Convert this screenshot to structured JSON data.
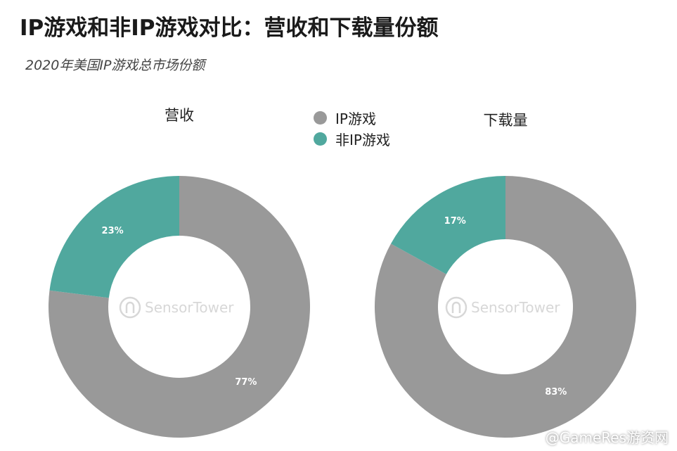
{
  "title": "IP游戏和非IP游戏对比：营收和下载量份额",
  "subtitle": "2020年美国IP游戏总市场份额",
  "legend": [
    {
      "label": "IP游戏",
      "color": "#999999"
    },
    {
      "label": "非IP游戏",
      "color": "#50a89e"
    }
  ],
  "watermark": {
    "text": "SensorTower"
  },
  "footer_watermark": "@GameRes游资网",
  "chart_data": [
    {
      "type": "pie",
      "donut": true,
      "title": "营收",
      "series": [
        {
          "name": "IP游戏",
          "value": 77,
          "label": "77%",
          "color": "#999999"
        },
        {
          "name": "非IP游戏",
          "value": 23,
          "label": "23%",
          "color": "#50a89e"
        }
      ]
    },
    {
      "type": "pie",
      "donut": true,
      "title": "下载量",
      "series": [
        {
          "name": "IP游戏",
          "value": 83,
          "label": "83%",
          "color": "#999999"
        },
        {
          "name": "非IP游戏",
          "value": 17,
          "label": "17%",
          "color": "#50a89e"
        }
      ]
    }
  ]
}
